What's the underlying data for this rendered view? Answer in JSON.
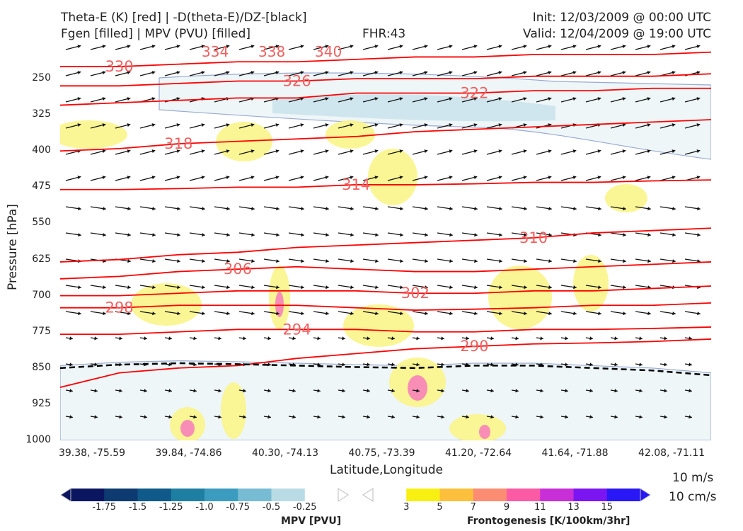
{
  "header": {
    "line1_left": "Theta-E (K) [red] | -D(theta-E)/DZ-[black]",
    "line2_left": "Fgen [filled] | MPV (PVU) [filled]",
    "fhr": "FHR:43",
    "init": "Init: 12/03/2009 @ 00:00 UTC",
    "valid": "Valid: 12/04/2009 @ 19:00 UTC"
  },
  "vector_ref": {
    "line1": "10 m/s",
    "line2": "10 cm/s"
  },
  "colors": {
    "theta_e": "#ff0000",
    "neg_dthetae_dz": "#000000",
    "wind_vectors": "#111111",
    "mpv_outline": "#9aaad0",
    "mpv_fill": "#eef6f8"
  },
  "chart_data": {
    "type": "cross-section",
    "xlabel": "Latitude,Longitude",
    "ylabel": "Pressure [hPa]",
    "x_ticks": [
      "39.38, -75.59",
      "39.84, -74.86",
      "40.30, -74.13",
      "40.75, -73.39",
      "41.20, -72.64",
      "41.64, -71.88",
      "42.08, -71.11"
    ],
    "y_ticks": [
      250,
      325,
      400,
      475,
      550,
      625,
      700,
      775,
      850,
      925,
      1000
    ],
    "ylim": [
      175,
      1000
    ],
    "y_inverted": true,
    "theta_e_contours": [
      {
        "value": 330,
        "label": "330",
        "y": [
          225,
          225,
          220,
          215,
          215,
          210,
          205,
          205,
          200,
          200,
          200,
          195
        ]
      },
      {
        "value": 326,
        "label": "326",
        "y": [
          265,
          265,
          260,
          255,
          255,
          250,
          250,
          250,
          245,
          245,
          245,
          240
        ]
      },
      {
        "value": 322,
        "label": "322",
        "y": [
          305,
          300,
          295,
          290,
          290,
          280,
          280,
          280,
          275,
          275,
          270,
          270
        ]
      },
      {
        "value": 318,
        "label": "318",
        "y": [
          400,
          395,
          385,
          380,
          375,
          370,
          360,
          355,
          350,
          345,
          340,
          335
        ]
      },
      {
        "value": 314,
        "label": "314",
        "y": [
          480,
          480,
          478,
          475,
          475,
          470,
          470,
          468,
          465,
          465,
          462,
          460
        ]
      },
      {
        "value": 310,
        "label": "310",
        "y": [
          630,
          625,
          615,
          610,
          600,
          595,
          590,
          585,
          580,
          570,
          565,
          560
        ]
      },
      {
        "value": 306,
        "label": "306",
        "y": [
          665,
          660,
          650,
          645,
          640,
          645,
          650,
          650,
          645,
          640,
          635,
          630
        ]
      },
      {
        "value": 302,
        "label": "302",
        "y": [
          700,
          700,
          695,
          690,
          690,
          690,
          695,
          695,
          690,
          690,
          685,
          680
        ]
      },
      {
        "value": 298,
        "label": "298",
        "y": [
          725,
          725,
          720,
          720,
          720,
          725,
          730,
          728,
          725,
          720,
          720,
          715
        ]
      },
      {
        "value": 294,
        "label": "294",
        "y": [
          780,
          780,
          775,
          770,
          770,
          770,
          775,
          775,
          770,
          770,
          768,
          765
        ]
      },
      {
        "value": 290,
        "label": "290",
        "y": [
          890,
          860,
          850,
          845,
          830,
          820,
          810,
          805,
          800,
          798,
          795,
          790
        ]
      }
    ],
    "theta_e_other_labels": [
      "334",
      "338",
      "340"
    ],
    "neg_dthetae_dz_contour": {
      "y": [
        850,
        843,
        840,
        842,
        845,
        848,
        850,
        845,
        845,
        850,
        855,
        865
      ]
    },
    "x_positions": [
      0,
      1,
      2,
      3,
      4,
      5,
      6,
      7,
      8,
      9,
      10,
      11
    ],
    "colorbars": [
      {
        "title": "MPV [PVU]",
        "labels": [
          "-1.75",
          "-1.5",
          "-1.25",
          "-1.0",
          "-0.75",
          "-0.5",
          "-0.25"
        ],
        "colors": [
          "#0b1660",
          "#0e3a72",
          "#105a8a",
          "#1f7fa3",
          "#3c9cbf",
          "#78bcd3",
          "#b9dbe6",
          "#ffffff"
        ]
      },
      {
        "title": "Frontogenesis [K/100km/3hr]",
        "labels": [
          "3",
          "5",
          "7",
          "9",
          "11",
          "13",
          "15"
        ],
        "colors": [
          "#ffffff",
          "#f7f011",
          "#fcc03c",
          "#fc8c72",
          "#fb5aa4",
          "#c92fd6",
          "#7b16f2",
          "#2a17f5"
        ]
      }
    ]
  }
}
